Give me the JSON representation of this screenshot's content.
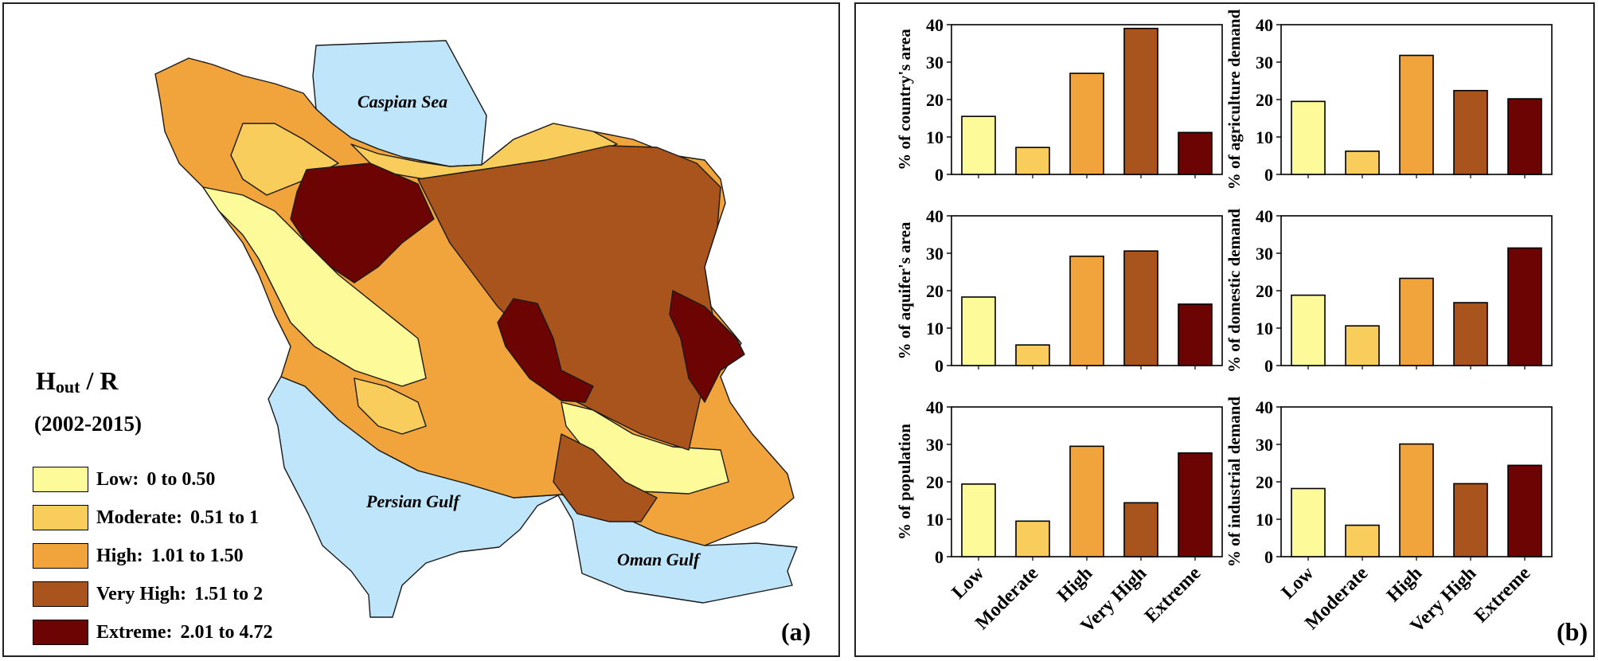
{
  "panel_a": {
    "label": "(a)",
    "legend": {
      "title_main": "H",
      "title_sub": "out",
      "title_rest": " / R",
      "period": "(2002-2015)",
      "items": [
        {
          "name": "Low:",
          "range": "0 to 0.50",
          "color": "#fdfa9a"
        },
        {
          "name": "Moderate:",
          "range": "0.51 to 1",
          "color": "#f9cd5c"
        },
        {
          "name": "High:",
          "range": "1.01 to 1.50",
          "color": "#f1a33c"
        },
        {
          "name": "Very High:",
          "range": "1.51 to 2",
          "color": "#a9541c"
        },
        {
          "name": "Extreme:",
          "range": "2.01 to 4.72",
          "color": "#6c0404"
        }
      ]
    },
    "water_labels": {
      "caspian": "Caspian Sea",
      "persian": "Persian Gulf",
      "oman": "Oman Gulf"
    },
    "colors": {
      "water": "#bee5fa",
      "border": "#1a1a1a"
    }
  },
  "panel_b": {
    "label": "(b)"
  },
  "chart_data": [
    {
      "type": "bar",
      "ylabel": "% of country's area",
      "categories": [
        "Low",
        "Moderate",
        "High",
        "Very High",
        "Extreme"
      ],
      "values": [
        15.5,
        7.2,
        27,
        39,
        11.2
      ],
      "ylim": [
        0,
        40
      ],
      "yticks": [
        0,
        10,
        20,
        30,
        40
      ],
      "colors": [
        "#fdfa9a",
        "#f9cd5c",
        "#f1a33c",
        "#a9541c",
        "#6c0404"
      ]
    },
    {
      "type": "bar",
      "ylabel": "% of agriculture demand",
      "categories": [
        "Low",
        "Moderate",
        "High",
        "Very High",
        "Extreme"
      ],
      "values": [
        19.5,
        6.2,
        31.8,
        22.4,
        20.2
      ],
      "ylim": [
        0,
        40
      ],
      "yticks": [
        0,
        10,
        20,
        30,
        40
      ],
      "colors": [
        "#fdfa9a",
        "#f9cd5c",
        "#f1a33c",
        "#a9541c",
        "#6c0404"
      ]
    },
    {
      "type": "bar",
      "ylabel": "% of aquifer's area",
      "categories": [
        "Low",
        "Moderate",
        "High",
        "Very High",
        "Extreme"
      ],
      "values": [
        18.3,
        5.5,
        29.2,
        30.6,
        16.4
      ],
      "ylim": [
        0,
        40
      ],
      "yticks": [
        0,
        10,
        20,
        30,
        40
      ],
      "colors": [
        "#fdfa9a",
        "#f9cd5c",
        "#f1a33c",
        "#a9541c",
        "#6c0404"
      ]
    },
    {
      "type": "bar",
      "ylabel": "% of domestic demand",
      "categories": [
        "Low",
        "Moderate",
        "High",
        "Very High",
        "Extreme"
      ],
      "values": [
        18.8,
        10.6,
        23.3,
        16.8,
        31.4
      ],
      "ylim": [
        0,
        40
      ],
      "yticks": [
        0,
        10,
        20,
        30,
        40
      ],
      "colors": [
        "#fdfa9a",
        "#f9cd5c",
        "#f1a33c",
        "#a9541c",
        "#6c0404"
      ]
    },
    {
      "type": "bar",
      "ylabel": "% of population",
      "categories": [
        "Low",
        "Moderate",
        "High",
        "Very High",
        "Extreme"
      ],
      "values": [
        19.4,
        9.5,
        29.5,
        14.4,
        27.7
      ],
      "ylim": [
        0,
        40
      ],
      "yticks": [
        0,
        10,
        20,
        30,
        40
      ],
      "colors": [
        "#fdfa9a",
        "#f9cd5c",
        "#f1a33c",
        "#a9541c",
        "#6c0404"
      ]
    },
    {
      "type": "bar",
      "ylabel": "% of industrial demand",
      "categories": [
        "Low",
        "Moderate",
        "High",
        "Very High",
        "Extreme"
      ],
      "values": [
        18.2,
        8.4,
        30.1,
        19.5,
        24.4
      ],
      "ylim": [
        0,
        40
      ],
      "yticks": [
        0,
        10,
        20,
        30,
        40
      ],
      "colors": [
        "#fdfa9a",
        "#f9cd5c",
        "#f1a33c",
        "#a9541c",
        "#6c0404"
      ]
    }
  ]
}
